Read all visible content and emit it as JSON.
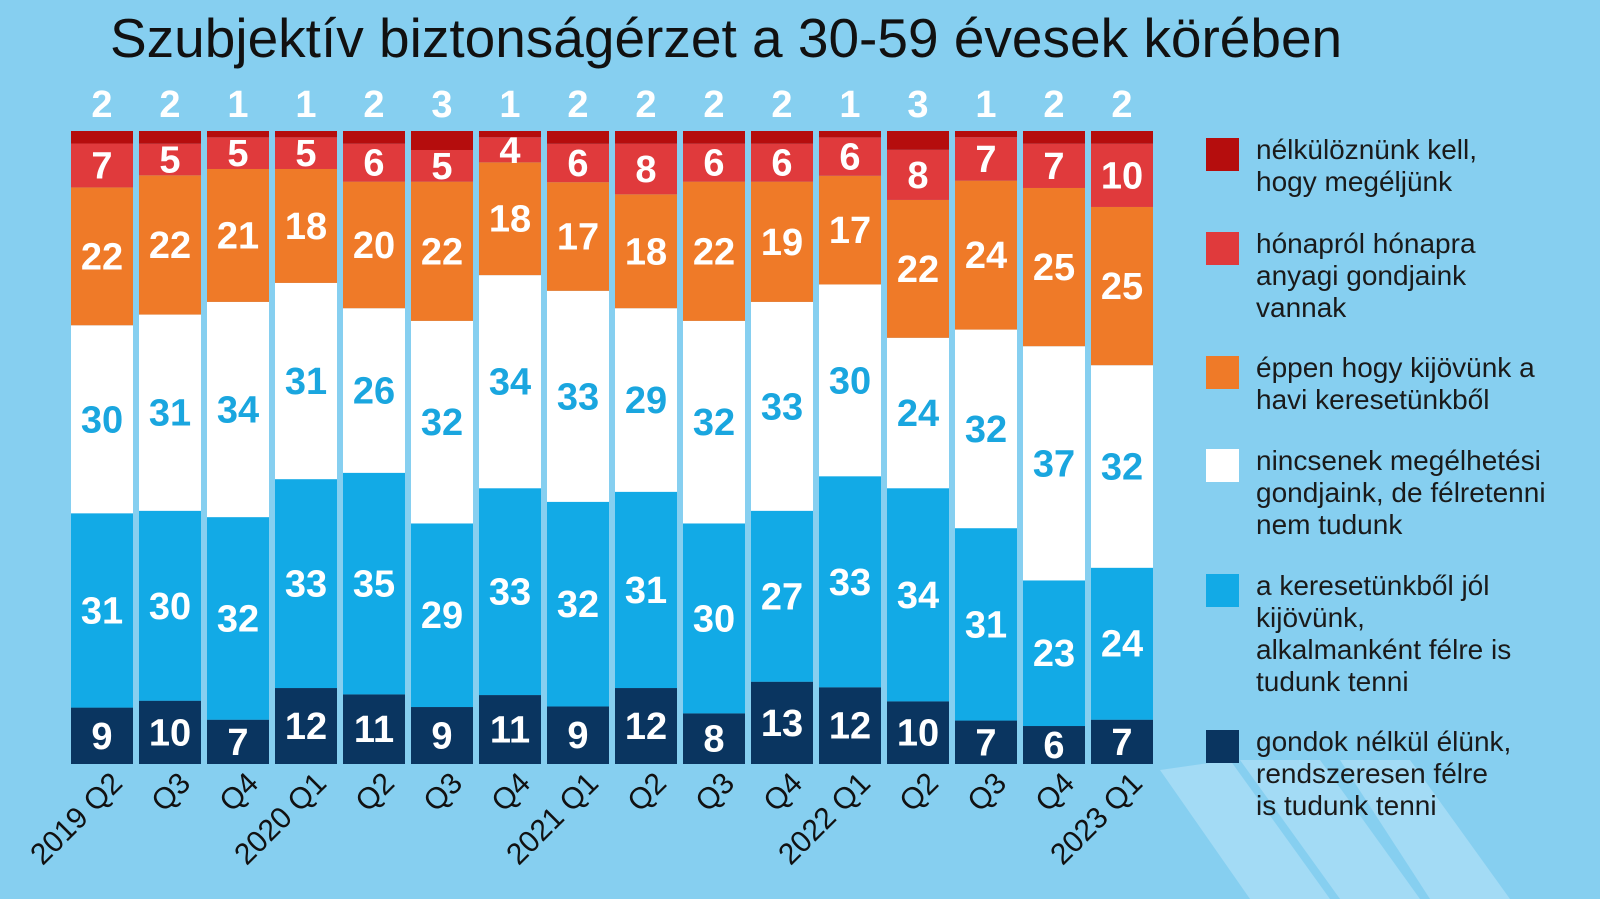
{
  "chart_data": {
    "type": "bar",
    "stacked": true,
    "title": "Szubjektív biztonságérzet a 30-59 évesek körében",
    "categories": [
      "2019 Q2",
      "Q3",
      "Q4",
      "2020 Q1",
      "Q2",
      "Q3",
      "Q4",
      "2021 Q1",
      "Q2",
      "Q3",
      "Q4",
      "2022 Q1",
      "Q2",
      "Q3",
      "Q4",
      "2023 Q1"
    ],
    "series": [
      {
        "name": "gondok nélkül élünk, rendszeresen félre is tudunk tenni",
        "color": "#0a3560",
        "label_color": "#ffffff",
        "values": [
          9,
          10,
          7,
          12,
          11,
          9,
          11,
          9,
          12,
          8,
          13,
          12,
          10,
          7,
          6,
          7
        ]
      },
      {
        "name": "a keresetünkből jól kijövünk, alkalmanként félre is tudunk tenni",
        "color": "#12aae6",
        "label_color": "#ffffff",
        "values": [
          31,
          30,
          32,
          33,
          35,
          29,
          33,
          32,
          31,
          30,
          27,
          33,
          34,
          31,
          23,
          24
        ]
      },
      {
        "name": "nincsenek megélhetési gondjaink, de félretenni nem tudunk",
        "color": "#ffffff",
        "label_color": "#1aa6df",
        "values": [
          30,
          31,
          34,
          31,
          26,
          32,
          34,
          33,
          29,
          32,
          33,
          30,
          24,
          32,
          37,
          32
        ]
      },
      {
        "name": "éppen hogy kijövünk a havi keresetünkből",
        "color": "#ef7a28",
        "label_color": "#ffffff",
        "values": [
          22,
          22,
          21,
          18,
          20,
          22,
          18,
          17,
          18,
          22,
          19,
          17,
          22,
          24,
          25,
          25
        ]
      },
      {
        "name": "hónapról hónapra anyagi gondjaink vannak",
        "color": "#e03a3c",
        "label_color": "#ffffff",
        "values": [
          7,
          5,
          5,
          5,
          6,
          5,
          4,
          6,
          8,
          6,
          6,
          6,
          8,
          7,
          7,
          10
        ]
      },
      {
        "name": "nélkülöznünk kell, hogy megéljünk",
        "color": "#b50d0d",
        "label_color": "#ffffff",
        "values": [
          2,
          2,
          1,
          1,
          2,
          3,
          1,
          2,
          2,
          2,
          2,
          1,
          3,
          1,
          2,
          2
        ]
      }
    ],
    "ylim": [
      0,
      100
    ],
    "xlabel": "",
    "ylabel": "",
    "legend_position": "right"
  },
  "legend": [
    {
      "lines": [
        "nélkülöznünk kell,",
        "hogy megéljünk"
      ],
      "color": "#b50d0d"
    },
    {
      "lines": [
        "hónapról hónapra",
        "anyagi gondjaink",
        "vannak"
      ],
      "color": "#e03a3c"
    },
    {
      "lines": [
        "éppen hogy kijövünk a",
        "havi keresetünkből"
      ],
      "color": "#ef7a28"
    },
    {
      "lines": [
        "nincsenek megélhetési",
        "gondjaink, de félretenni",
        "nem tudunk"
      ],
      "color": "#ffffff"
    },
    {
      "lines": [
        "a keresetünkből jól",
        "kijövünk,",
        "alkalmanként félre is",
        "tudunk tenni"
      ],
      "color": "#12aae6"
    },
    {
      "lines": [
        "gondok nélkül élünk,",
        "rendszeresen félre",
        "is tudunk tenni"
      ],
      "color": "#0a3560"
    }
  ],
  "background_color": "#86cff0"
}
